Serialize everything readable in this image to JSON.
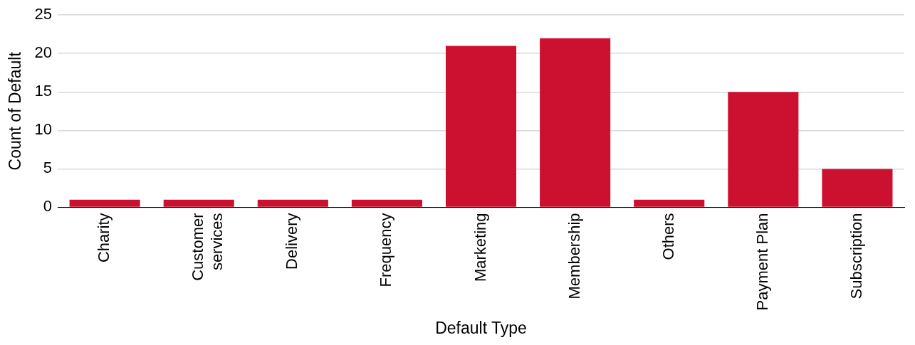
{
  "chart_data": {
    "type": "bar",
    "xlabel": "Default Type",
    "ylabel": "Count of Default",
    "categories": [
      "Charity",
      "Customer services",
      "Delivery",
      "Frequency",
      "Marketing",
      "Membership",
      "Others",
      "Payment Plan",
      "Subscription"
    ],
    "values": [
      1,
      1,
      1,
      1,
      21,
      22,
      1,
      15,
      5
    ],
    "color": "#cc1130",
    "ylim": [
      0,
      25
    ],
    "yticks": [
      0,
      5,
      10,
      15,
      20,
      25
    ],
    "grid": "y",
    "legend": false
  }
}
